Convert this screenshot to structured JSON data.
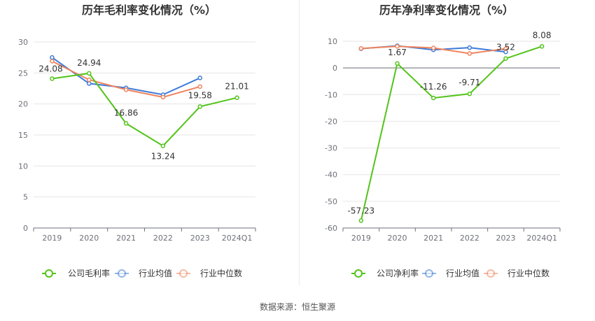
{
  "source": "数据来源：恒生聚源",
  "chart_data": [
    {
      "type": "line",
      "title": "历年毛利率变化情况（%）",
      "categories": [
        "2019",
        "2020",
        "2021",
        "2022",
        "2023",
        "2024Q1"
      ],
      "ylim": [
        0,
        30
      ],
      "yticks": [
        0,
        5,
        10,
        15,
        20,
        25,
        30
      ],
      "ytick_labels": [
        "0",
        "5",
        "10",
        "15",
        "20",
        "25",
        "30"
      ],
      "legend_position": "bottom",
      "series": [
        {
          "name": "公司毛利率",
          "color": "#52c41a",
          "values": [
            24.08,
            24.94,
            16.86,
            13.24,
            19.58,
            21.01
          ],
          "labels": [
            "24.08",
            "24.94",
            "16.86",
            "13.24",
            "19.58",
            "21.01"
          ]
        },
        {
          "name": "行业均值",
          "color": "#3d7bd9",
          "values": [
            27.5,
            23.3,
            22.6,
            21.5,
            24.2,
            null
          ]
        },
        {
          "name": "行业中位数",
          "color": "#f0845d",
          "values": [
            26.9,
            23.9,
            22.3,
            21.1,
            22.8,
            null
          ]
        }
      ]
    },
    {
      "type": "line",
      "title": "历年净利率变化情况（%）",
      "categories": [
        "2019",
        "2020",
        "2021",
        "2022",
        "2023",
        "2024Q1"
      ],
      "ylim": [
        -60,
        10
      ],
      "yticks": [
        -60,
        -50,
        -40,
        -30,
        -20,
        -10,
        0,
        10
      ],
      "ytick_labels": [
        "-60",
        "-50",
        "-40",
        "-30",
        "-20",
        "-10",
        "0",
        "10"
      ],
      "legend_position": "bottom",
      "series": [
        {
          "name": "公司净利率",
          "color": "#52c41a",
          "values": [
            -57.23,
            1.67,
            -11.26,
            -9.71,
            3.52,
            8.08
          ],
          "labels": [
            "-57.23",
            "1.67",
            "-11.26",
            "-9.71",
            "3.52",
            "8.08"
          ]
        },
        {
          "name": "行业均值",
          "color": "#3d7bd9",
          "values": [
            7.2,
            8.3,
            6.8,
            7.6,
            6.0,
            null
          ]
        },
        {
          "name": "行业中位数",
          "color": "#f0845d",
          "values": [
            7.3,
            8.1,
            7.5,
            5.4,
            7.2,
            null
          ]
        }
      ]
    }
  ]
}
